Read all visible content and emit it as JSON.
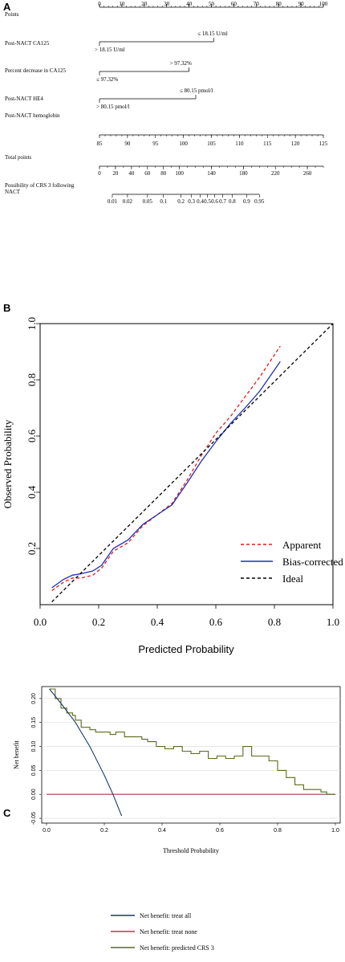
{
  "chart_data": [
    {
      "type": "nomogram",
      "panel_label": "A",
      "rows": [
        {
          "label": "Points",
          "kind": "scale",
          "ticks": [
            0,
            10,
            20,
            30,
            40,
            50,
            60,
            70,
            80,
            90,
            100
          ],
          "range": [
            0,
            100
          ],
          "minor_step": 2
        },
        {
          "label": "Post-NACT CA125",
          "kind": "binary",
          "range": [
            0,
            51
          ],
          "top_label": "≤ 18.15 U/ml",
          "bottom_label": "> 18.15 U/ml"
        },
        {
          "label": "Percent decrease in CA125",
          "kind": "binary",
          "range": [
            0,
            40
          ],
          "top_label": "> 97.32%",
          "bottom_label": "≤ 97.32%"
        },
        {
          "label": "Post-NACT HE4",
          "kind": "binary",
          "range": [
            0,
            43
          ],
          "top_label": "≤ 80.15 pmol/l",
          "bottom_label": "> 80.15 pmol/l"
        },
        {
          "label": "Post-NACT hemoglobin",
          "kind": "scale",
          "ticks": [
            85,
            90,
            95,
            100,
            105,
            110,
            115,
            120,
            125
          ],
          "range": [
            0,
            100
          ],
          "minor_step": 1
        },
        {
          "label": "Total points",
          "kind": "scale",
          "ticks": [
            0,
            20,
            40,
            60,
            80,
            100,
            140,
            180,
            220,
            260
          ],
          "range": [
            0,
            280
          ],
          "minor_step": 10
        },
        {
          "label": "Possibility of CRS 3 following NACT",
          "kind": "scale",
          "ticks": [
            "0.01",
            "0.02",
            "0.05",
            "0.1",
            "0.2",
            "0.3",
            "0.4",
            "0.5",
            "0.6",
            "0.7",
            "0.8",
            "0.9",
            "0.95"
          ],
          "tick_total_points": [
            16,
            35,
            60,
            80,
            102,
            115,
            126,
            135,
            144,
            154,
            166,
            184,
            200
          ]
        }
      ]
    },
    {
      "type": "line",
      "panel_label": "B",
      "xlabel": "Predicted Probability",
      "ylabel": "Observed Probability",
      "xlim": [
        0.0,
        1.0
      ],
      "ylim": [
        0.0,
        1.0
      ],
      "xticks": [
        "0.0",
        "0.2",
        "0.4",
        "0.6",
        "0.8",
        "1.0"
      ],
      "yticks": [
        "0.2",
        "0.4",
        "0.6",
        "0.8",
        "1.0"
      ],
      "legend_position": "bottom-right",
      "series": [
        {
          "name": "Apparent",
          "color": "#e11b1b",
          "dash": "dashed",
          "x": [
            0.04,
            0.08,
            0.11,
            0.14,
            0.18,
            0.21,
            0.25,
            0.3,
            0.35,
            0.4,
            0.45,
            0.5,
            0.55,
            0.6,
            0.65,
            0.7,
            0.75,
            0.82
          ],
          "y": [
            0.05,
            0.08,
            0.095,
            0.095,
            0.105,
            0.13,
            0.19,
            0.22,
            0.28,
            0.32,
            0.36,
            0.44,
            0.53,
            0.61,
            0.67,
            0.74,
            0.81,
            0.92
          ]
        },
        {
          "name": "Bias-corrected",
          "color": "#1f2fb8",
          "dash": "solid",
          "x": [
            0.04,
            0.08,
            0.11,
            0.14,
            0.18,
            0.21,
            0.25,
            0.3,
            0.35,
            0.4,
            0.45,
            0.5,
            0.55,
            0.6,
            0.65,
            0.7,
            0.75,
            0.82
          ],
          "y": [
            0.06,
            0.09,
            0.105,
            0.11,
            0.12,
            0.14,
            0.2,
            0.23,
            0.285,
            0.32,
            0.355,
            0.43,
            0.51,
            0.58,
            0.645,
            0.7,
            0.76,
            0.865
          ]
        },
        {
          "name": "Ideal",
          "color": "#000000",
          "dash": "dashed",
          "x": [
            0.04,
            1.0
          ],
          "y": [
            0.01,
            1.0
          ]
        }
      ]
    },
    {
      "type": "line",
      "panel_label": "C",
      "xlabel": "Threshold Probability",
      "ylabel": "Net benefit",
      "xlim": [
        0.0,
        1.0
      ],
      "ylim": [
        -0.05,
        0.22
      ],
      "xticks": [
        "0.0",
        "0.2",
        "0.4",
        "0.6",
        "0.8",
        "1.0"
      ],
      "yticks": [
        "-0.05",
        "0.00",
        "0.05",
        "0.10",
        "0.15",
        "0.20"
      ],
      "grid": true,
      "legend_position": "bottom",
      "series": [
        {
          "name": "Net benefit: treat all",
          "color": "#1c3a6b",
          "x": [
            0.01,
            0.05,
            0.1,
            0.15,
            0.2,
            0.23,
            0.26
          ],
          "y": [
            0.22,
            0.19,
            0.15,
            0.1,
            0.04,
            0.0,
            -0.045
          ]
        },
        {
          "name": "Net benefit: treat none",
          "color": "#b33a52",
          "x": [
            0.0,
            1.0
          ],
          "y": [
            0.0,
            0.0
          ]
        },
        {
          "name": "Net benefit: predicted CRS 3",
          "color": "#5a6b1a",
          "x": [
            0.01,
            0.03,
            0.05,
            0.07,
            0.09,
            0.1,
            0.12,
            0.15,
            0.17,
            0.2,
            0.22,
            0.24,
            0.27,
            0.3,
            0.33,
            0.35,
            0.38,
            0.41,
            0.44,
            0.47,
            0.5,
            0.53,
            0.56,
            0.59,
            0.62,
            0.65,
            0.68,
            0.7,
            0.71,
            0.74,
            0.77,
            0.8,
            0.83,
            0.86,
            0.89,
            0.92,
            0.95,
            0.97
          ],
          "y": [
            0.22,
            0.2,
            0.18,
            0.17,
            0.165,
            0.155,
            0.14,
            0.135,
            0.13,
            0.13,
            0.125,
            0.13,
            0.12,
            0.12,
            0.115,
            0.11,
            0.1,
            0.095,
            0.1,
            0.09,
            0.085,
            0.09,
            0.075,
            0.08,
            0.075,
            0.08,
            0.1,
            0.1,
            0.08,
            0.08,
            0.07,
            0.05,
            0.035,
            0.02,
            0.01,
            0.01,
            0.005,
            0.0
          ]
        }
      ]
    }
  ]
}
